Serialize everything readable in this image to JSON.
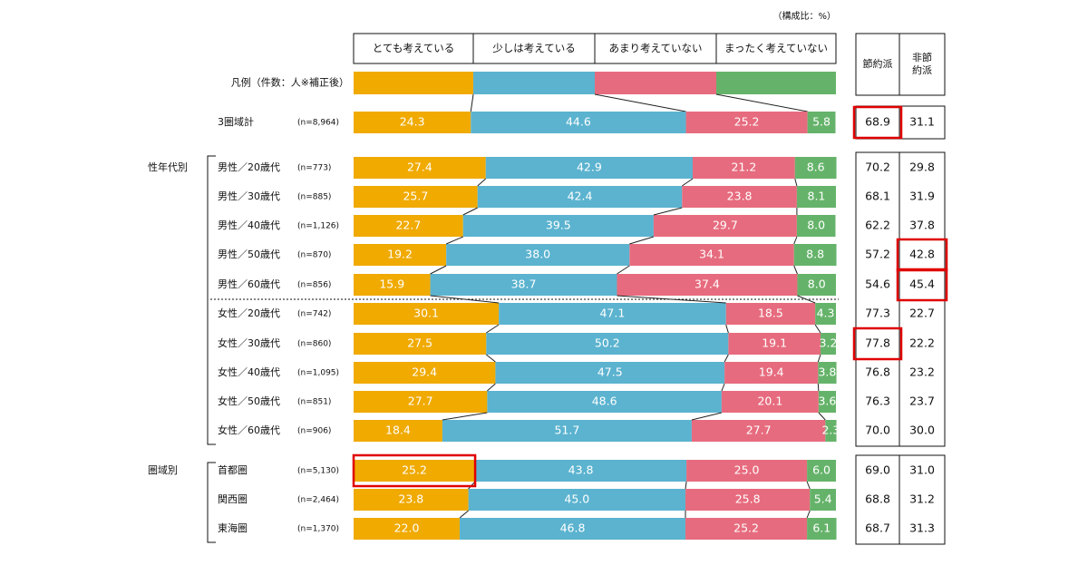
{
  "chart_data": {
    "type": "bar",
    "stacked": true,
    "orientation": "horizontal",
    "unit_note": "（構成比：%）",
    "legend_label": "凡例（件数：人※補正後）",
    "columns": [
      "とても考えている",
      "少しは考えている",
      "あまり考えていない",
      "まったく考えていない"
    ],
    "summary_headers": [
      "節約派",
      "非節約派"
    ],
    "colors": [
      "#F0AA00",
      "#5BB3CF",
      "#E76B7E",
      "#65B36A"
    ],
    "groups": [
      {
        "label": "",
        "rows": [
          0
        ]
      },
      {
        "label": "性年代別",
        "rows": [
          1,
          2,
          3,
          4,
          5,
          6,
          7,
          8,
          9,
          10
        ]
      },
      {
        "label": "圏域別",
        "rows": [
          11,
          12,
          13
        ]
      }
    ],
    "rows": [
      {
        "label": "3圏域計",
        "n": "(n=8,964)",
        "values": [
          24.3,
          44.6,
          25.2,
          5.8
        ],
        "saver": "68.9",
        "nonsaver": "31.1"
      },
      {
        "label": "男性／20歳代",
        "n": "(n=773)",
        "values": [
          27.4,
          42.9,
          21.2,
          8.6
        ],
        "saver": "70.2",
        "nonsaver": "29.8"
      },
      {
        "label": "男性／30歳代",
        "n": "(n=885)",
        "values": [
          25.7,
          42.4,
          23.8,
          8.1
        ],
        "saver": "68.1",
        "nonsaver": "31.9"
      },
      {
        "label": "男性／40歳代",
        "n": "(n=1,126)",
        "values": [
          22.7,
          39.5,
          29.7,
          8.0
        ],
        "saver": "62.2",
        "nonsaver": "37.8"
      },
      {
        "label": "男性／50歳代",
        "n": "(n=870)",
        "values": [
          19.2,
          38.0,
          34.1,
          8.8
        ],
        "saver": "57.2",
        "nonsaver": "42.8"
      },
      {
        "label": "男性／60歳代",
        "n": "(n=856)",
        "values": [
          15.9,
          38.7,
          37.4,
          8.0
        ],
        "saver": "54.6",
        "nonsaver": "45.4"
      },
      {
        "label": "女性／20歳代",
        "n": "(n=742)",
        "values": [
          30.1,
          47.1,
          18.5,
          4.3
        ],
        "saver": "77.3",
        "nonsaver": "22.7"
      },
      {
        "label": "女性／30歳代",
        "n": "(n=860)",
        "values": [
          27.5,
          50.2,
          19.1,
          3.2
        ],
        "saver": "77.8",
        "nonsaver": "22.2"
      },
      {
        "label": "女性／40歳代",
        "n": "(n=1,095)",
        "values": [
          29.4,
          47.5,
          19.4,
          3.8
        ],
        "saver": "76.8",
        "nonsaver": "23.2"
      },
      {
        "label": "女性／50歳代",
        "n": "(n=851)",
        "values": [
          27.7,
          48.6,
          20.1,
          3.6
        ],
        "saver": "76.3",
        "nonsaver": "23.7"
      },
      {
        "label": "女性／60歳代",
        "n": "(n=906)",
        "values": [
          18.4,
          51.7,
          27.7,
          2.3
        ],
        "saver": "70.0",
        "nonsaver": "30.0"
      },
      {
        "label": "首都圏",
        "n": "(n=5,130)",
        "values": [
          25.2,
          43.8,
          25.0,
          6.0
        ],
        "saver": "69.0",
        "nonsaver": "31.0"
      },
      {
        "label": "関西圏",
        "n": "(n=2,464)",
        "values": [
          23.8,
          45.0,
          25.8,
          5.4
        ],
        "saver": "68.8",
        "nonsaver": "31.2"
      },
      {
        "label": "東海圏",
        "n": "(n=1,370)",
        "values": [
          22.0,
          46.8,
          25.2,
          6.1
        ],
        "saver": "68.7",
        "nonsaver": "31.3"
      }
    ],
    "highlighted_cells": [
      {
        "row": 0,
        "col": "saver"
      },
      {
        "row": 4,
        "col": "nonsaver"
      },
      {
        "row": 5,
        "col": "nonsaver"
      },
      {
        "row": 7,
        "col": "saver"
      },
      {
        "row": 11,
        "col": "bar0"
      }
    ],
    "highlight_color": "#E00000",
    "xlim": [
      0,
      100
    ]
  }
}
